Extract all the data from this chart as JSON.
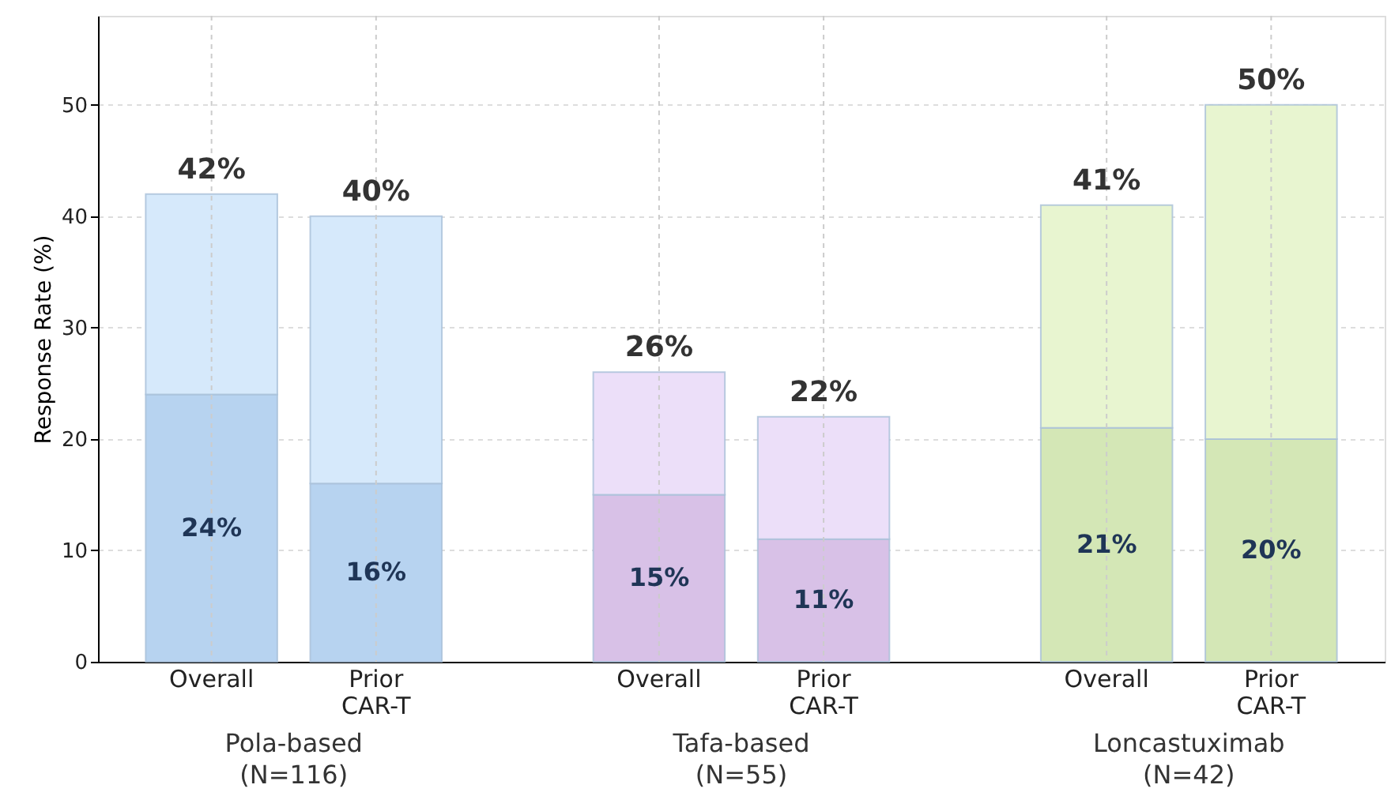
{
  "chart_data": {
    "type": "bar",
    "stacked": true,
    "categories": [
      "Overall",
      "Prior CAR-T",
      "Overall",
      "Prior CAR-T",
      "Overall",
      "Prior CAR-T"
    ],
    "series": [
      {
        "values": [
          24,
          16,
          15,
          11,
          21,
          20
        ],
        "colors": [
          "#b7d3f0",
          "#b7d3f0",
          "#d8c1e7",
          "#d8c1e7",
          "#d4e7b6",
          "#d4e7b6"
        ],
        "value_labels": [
          "24%",
          "16%",
          "15%",
          "11%",
          "21%",
          "20%"
        ]
      },
      {
        "values": [
          18,
          24,
          11,
          11,
          20,
          30
        ],
        "colors": [
          "#d6e9fb",
          "#d6e9fb",
          "#ecdff9",
          "#ecdff9",
          "#e8f5d0",
          "#e8f5d0"
        ]
      }
    ],
    "totals": [
      "42%",
      "40%",
      "26%",
      "22%",
      "41%",
      "50%"
    ],
    "annotations": [
      "Pola-based (N=116)",
      "Tafa-based (N=55)",
      "Loncastuximab (N=42)"
    ],
    "ylabel": "Response Rate (%)",
    "ylim": [
      0,
      58
    ],
    "yticks": [
      0,
      10,
      20,
      30,
      40,
      50
    ],
    "grid": true
  }
}
